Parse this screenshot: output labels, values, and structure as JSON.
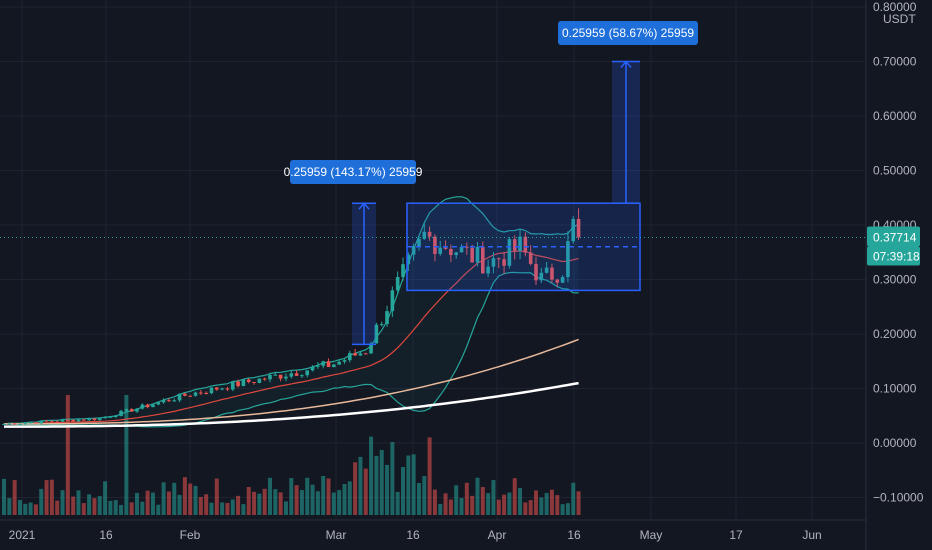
{
  "chart_data": {
    "type": "candlestick",
    "quote_currency": "USDT",
    "y_ticks": [
      "0.80000",
      "0.70000",
      "0.60000",
      "0.50000",
      "0.40000",
      "0.30000",
      "0.20000",
      "0.10000",
      "0.00000",
      "−0.10000"
    ],
    "y_tick_values": [
      0.8,
      0.7,
      0.6,
      0.5,
      0.4,
      0.3,
      0.2,
      0.1,
      0.0,
      -0.1
    ],
    "x_ticks": [
      "2021",
      "16",
      "Feb",
      "Mar",
      "16",
      "Apr",
      "16",
      "May",
      "17",
      "Jun"
    ],
    "last_price": "0.37714",
    "countdown": "07:39:18",
    "colors": {
      "background": "#131722",
      "up": "#26a69a",
      "down": "#ef5350",
      "measure": "#2962ff",
      "bollinger": "#26a69a",
      "ma_short": "#e0483f",
      "ma_mid": "#e8b89a",
      "ma_long": "#ffffff"
    },
    "measurements": [
      {
        "label": "0.25959 (143.17%) 25959",
        "from": 0.181,
        "to": 0.44
      },
      {
        "label": "0.25959 (58.67%) 25959",
        "from": 0.44,
        "to": 0.7
      }
    ],
    "range_box": {
      "top": 0.44,
      "bottom": 0.28,
      "mid": 0.36
    },
    "ohlc_segments": [
      {
        "from_day": 0,
        "to_day": 18,
        "start": 0.035,
        "end": 0.045
      },
      {
        "from_day": 18,
        "to_day": 35,
        "start": 0.045,
        "end": 0.09
      },
      {
        "from_day": 35,
        "to_day": 62,
        "start": 0.09,
        "end": 0.145
      },
      {
        "from_day": 62,
        "to_day": 68,
        "start": 0.145,
        "end": 0.17
      },
      {
        "from_day": 68,
        "to_day": 74,
        "start": 0.17,
        "end": 0.29
      },
      {
        "from_day": 74,
        "to_day": 79,
        "start": 0.29,
        "end": 0.38
      },
      {
        "from_day": 79,
        "to_day": 91,
        "start": 0.38,
        "end": 0.33
      },
      {
        "from_day": 91,
        "to_day": 97,
        "start": 0.33,
        "end": 0.36
      },
      {
        "from_day": 97,
        "to_day": 101,
        "start": 0.36,
        "end": 0.3
      },
      {
        "from_day": 101,
        "to_day": 105,
        "start": 0.3,
        "end": 0.32
      },
      {
        "from_day": 105,
        "to_day": 107,
        "start": 0.32,
        "end": 0.4
      },
      {
        "from_day": 107,
        "to_day": 108,
        "start": 0.4,
        "end": 0.377
      }
    ]
  }
}
